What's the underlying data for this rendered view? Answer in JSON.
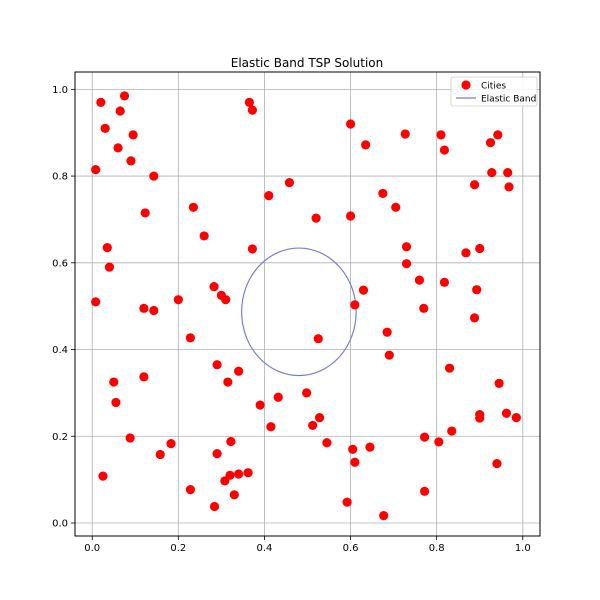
{
  "chart_data": {
    "type": "scatter",
    "title": "Elastic Band TSP Solution",
    "xlabel": "",
    "ylabel": "",
    "xlim": [
      -0.04,
      1.04
    ],
    "ylim": [
      -0.03,
      1.04
    ],
    "xticks": [
      0.0,
      0.2,
      0.4,
      0.6,
      0.8,
      1.0
    ],
    "yticks": [
      0.0,
      0.2,
      0.4,
      0.6,
      0.8,
      1.0
    ],
    "xtick_labels": [
      "0.0",
      "0.2",
      "0.4",
      "0.6",
      "0.8",
      "1.0"
    ],
    "ytick_labels": [
      "0.0",
      "0.2",
      "0.4",
      "0.6",
      "0.8",
      "1.0"
    ],
    "grid": true,
    "legend": {
      "placement": "top-right",
      "entries": [
        "Cities",
        "Elastic Band"
      ]
    },
    "series": [
      {
        "name": "Cities",
        "kind": "scatter",
        "color": "#ff0000",
        "points": [
          [
            0.02,
            0.97
          ],
          [
            0.03,
            0.91
          ],
          [
            0.065,
            0.95
          ],
          [
            0.075,
            0.985
          ],
          [
            0.095,
            0.895
          ],
          [
            0.06,
            0.865
          ],
          [
            0.09,
            0.835
          ],
          [
            0.008,
            0.815
          ],
          [
            0.143,
            0.8
          ],
          [
            0.123,
            0.715
          ],
          [
            0.035,
            0.635
          ],
          [
            0.04,
            0.59
          ],
          [
            0.008,
            0.51
          ],
          [
            0.12,
            0.495
          ],
          [
            0.143,
            0.49
          ],
          [
            0.2,
            0.515
          ],
          [
            0.235,
            0.728
          ],
          [
            0.26,
            0.662
          ],
          [
            0.283,
            0.545
          ],
          [
            0.3,
            0.525
          ],
          [
            0.31,
            0.515
          ],
          [
            0.372,
            0.632
          ],
          [
            0.41,
            0.755
          ],
          [
            0.458,
            0.785
          ],
          [
            0.365,
            0.97
          ],
          [
            0.372,
            0.952
          ],
          [
            0.6,
            0.92
          ],
          [
            0.635,
            0.872
          ],
          [
            0.727,
            0.897
          ],
          [
            0.81,
            0.895
          ],
          [
            0.818,
            0.86
          ],
          [
            0.52,
            0.703
          ],
          [
            0.6,
            0.708
          ],
          [
            0.675,
            0.76
          ],
          [
            0.705,
            0.728
          ],
          [
            0.73,
            0.637
          ],
          [
            0.73,
            0.598
          ],
          [
            0.63,
            0.537
          ],
          [
            0.61,
            0.503
          ],
          [
            0.76,
            0.56
          ],
          [
            0.77,
            0.495
          ],
          [
            0.818,
            0.555
          ],
          [
            0.868,
            0.623
          ],
          [
            0.9,
            0.633
          ],
          [
            0.888,
            0.78
          ],
          [
            0.928,
            0.808
          ],
          [
            0.965,
            0.808
          ],
          [
            0.968,
            0.775
          ],
          [
            0.925,
            0.877
          ],
          [
            0.942,
            0.895
          ],
          [
            0.893,
            0.538
          ],
          [
            0.888,
            0.473
          ],
          [
            0.685,
            0.44
          ],
          [
            0.69,
            0.387
          ],
          [
            0.525,
            0.425
          ],
          [
            0.83,
            0.357
          ],
          [
            0.228,
            0.427
          ],
          [
            0.29,
            0.365
          ],
          [
            0.34,
            0.35
          ],
          [
            0.315,
            0.325
          ],
          [
            0.39,
            0.272
          ],
          [
            0.432,
            0.29
          ],
          [
            0.498,
            0.3
          ],
          [
            0.415,
            0.222
          ],
          [
            0.512,
            0.225
          ],
          [
            0.528,
            0.243
          ],
          [
            0.545,
            0.185
          ],
          [
            0.605,
            0.17
          ],
          [
            0.61,
            0.14
          ],
          [
            0.645,
            0.175
          ],
          [
            0.05,
            0.325
          ],
          [
            0.055,
            0.278
          ],
          [
            0.12,
            0.337
          ],
          [
            0.088,
            0.196
          ],
          [
            0.158,
            0.158
          ],
          [
            0.183,
            0.183
          ],
          [
            0.29,
            0.16
          ],
          [
            0.322,
            0.188
          ],
          [
            0.308,
            0.097
          ],
          [
            0.32,
            0.11
          ],
          [
            0.34,
            0.113
          ],
          [
            0.362,
            0.116
          ],
          [
            0.33,
            0.065
          ],
          [
            0.228,
            0.077
          ],
          [
            0.284,
            0.038
          ],
          [
            0.025,
            0.108
          ],
          [
            0.592,
            0.048
          ],
          [
            0.677,
            0.017
          ],
          [
            0.772,
            0.073
          ],
          [
            0.772,
            0.198
          ],
          [
            0.805,
            0.187
          ],
          [
            0.835,
            0.212
          ],
          [
            0.9,
            0.25
          ],
          [
            0.9,
            0.242
          ],
          [
            0.945,
            0.322
          ],
          [
            0.962,
            0.253
          ],
          [
            0.985,
            0.243
          ],
          [
            0.94,
            0.137
          ]
        ]
      },
      {
        "name": "Elastic Band",
        "kind": "line",
        "color": "#7b7bdc",
        "center": [
          0.48,
          0.487
        ],
        "radius_x": 0.133,
        "radius_y": 0.147
      }
    ]
  }
}
